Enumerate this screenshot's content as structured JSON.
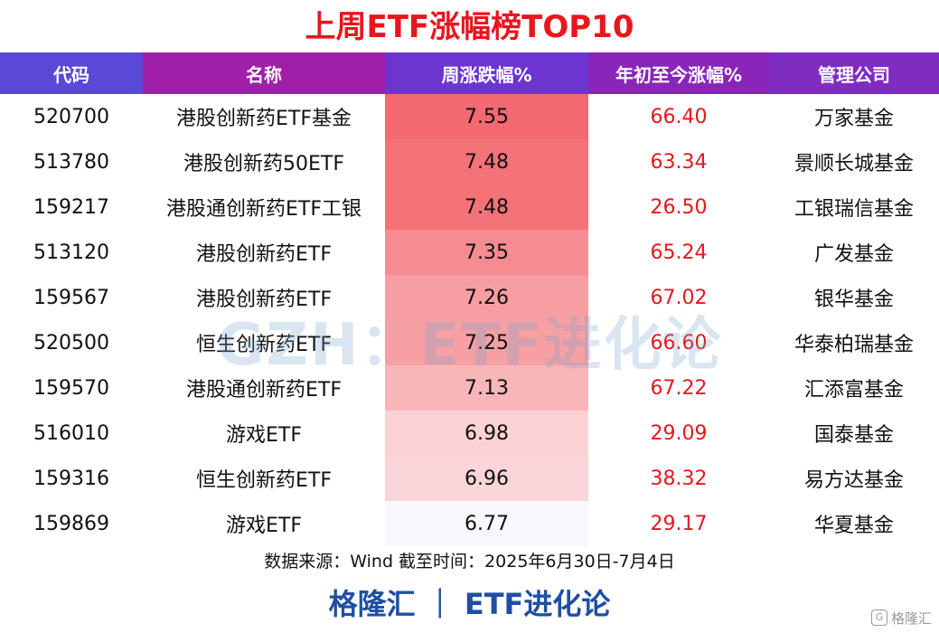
{
  "title": "上周ETF涨幅榜TOP10",
  "headers": [
    "代码",
    "名称",
    "周涨跌幅%",
    "年初至今涨幅%",
    "管理公司"
  ],
  "rows": [
    {
      "code": "520700",
      "name": "港股创新药ETF基金",
      "weekly": "7.55",
      "ytd": "66.40",
      "manager": "万家基金",
      "heat_color": "#f36b71"
    },
    {
      "code": "513780",
      "name": "港股创新药50ETF",
      "weekly": "7.48",
      "ytd": "63.34",
      "manager": "景顺长城基金",
      "heat_color": "#f37379"
    },
    {
      "code": "159217",
      "name": "港股通创新药ETF工银",
      "weekly": "7.48",
      "ytd": "26.50",
      "manager": "工银瑞信基金",
      "heat_color": "#f37379"
    },
    {
      "code": "513120",
      "name": "港股创新药ETF",
      "weekly": "7.35",
      "ytd": "65.24",
      "manager": "广发基金",
      "heat_color": "#f58c91"
    },
    {
      "code": "159567",
      "name": "港股创新药ETF",
      "weekly": "7.26",
      "ytd": "67.02",
      "manager": "银华基金",
      "heat_color": "#f79ea2"
    },
    {
      "code": "520500",
      "name": "恒生创新药ETF",
      "weekly": "7.25",
      "ytd": "66.60",
      "manager": "华泰柏瑞基金",
      "heat_color": "#f7a0a4"
    },
    {
      "code": "159570",
      "name": "港股通创新药ETF",
      "weekly": "7.13",
      "ytd": "67.22",
      "manager": "汇添富基金",
      "heat_color": "#f9b6b9"
    },
    {
      "code": "516010",
      "name": "游戏ETF",
      "weekly": "6.98",
      "ytd": "29.09",
      "manager": "国泰基金",
      "heat_color": "#fbd2d4"
    },
    {
      "code": "159316",
      "name": "恒生创新药ETF",
      "weekly": "6.96",
      "ytd": "38.32",
      "manager": "易方达基金",
      "heat_color": "#fbd6d8"
    },
    {
      "code": "159869",
      "name": "游戏ETF",
      "weekly": "6.77",
      "ytd": "29.17",
      "manager": "华夏基金",
      "heat_color": "#f8f8fc"
    }
  ],
  "watermark": "GZH：ETF进化论",
  "source": "数据来源：Wind 截至时间：2025年6月30日-7月4日",
  "brand": "格隆汇 ｜ ETF进化论",
  "corner_logo": "格隆汇",
  "colors": {
    "title": "#e8161d",
    "ytd_text": "#e8161d",
    "brand": "#1f4fa3"
  }
}
